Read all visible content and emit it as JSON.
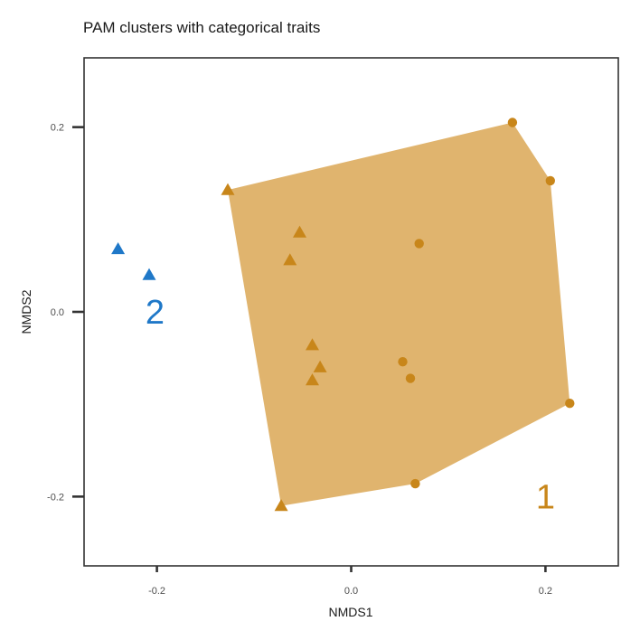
{
  "chart_data": {
    "type": "scatter",
    "title": "PAM clusters with categorical traits",
    "xlabel": "NMDS1",
    "ylabel": "NMDS2",
    "xlim": [
      -0.275,
      0.275
    ],
    "ylim": [
      -0.275,
      0.275
    ],
    "xticks": [
      -0.2,
      0.0,
      0.2
    ],
    "yticks": [
      -0.2,
      0.0,
      0.2
    ],
    "xtick_labels": [
      "-0.2",
      "0.0",
      "0.2"
    ],
    "ytick_labels": [
      "-0.2",
      "0.0",
      "0.2"
    ],
    "grid": false,
    "colors": {
      "cluster1": "#C8861A",
      "cluster1_hull": "#E0B46E",
      "cluster2": "#1F78C8"
    },
    "hull_cluster1": [
      [
        -0.127,
        0.132
      ],
      [
        0.166,
        0.205
      ],
      [
        0.205,
        0.142
      ],
      [
        0.225,
        -0.099
      ],
      [
        0.066,
        -0.186
      ],
      [
        -0.072,
        -0.21
      ]
    ],
    "points": [
      {
        "x": 0.166,
        "y": 0.205,
        "cluster": 1,
        "shape": "circle"
      },
      {
        "x": 0.205,
        "y": 0.142,
        "cluster": 1,
        "shape": "circle"
      },
      {
        "x": 0.07,
        "y": 0.074,
        "cluster": 1,
        "shape": "circle"
      },
      {
        "x": 0.053,
        "y": -0.054,
        "cluster": 1,
        "shape": "circle"
      },
      {
        "x": 0.061,
        "y": -0.072,
        "cluster": 1,
        "shape": "circle"
      },
      {
        "x": 0.225,
        "y": -0.099,
        "cluster": 1,
        "shape": "circle"
      },
      {
        "x": 0.066,
        "y": -0.186,
        "cluster": 1,
        "shape": "circle"
      },
      {
        "x": -0.127,
        "y": 0.132,
        "cluster": 1,
        "shape": "triangle"
      },
      {
        "x": -0.053,
        "y": 0.086,
        "cluster": 1,
        "shape": "triangle"
      },
      {
        "x": -0.063,
        "y": 0.056,
        "cluster": 1,
        "shape": "triangle"
      },
      {
        "x": -0.04,
        "y": -0.036,
        "cluster": 1,
        "shape": "triangle"
      },
      {
        "x": -0.032,
        "y": -0.06,
        "cluster": 1,
        "shape": "triangle"
      },
      {
        "x": -0.04,
        "y": -0.074,
        "cluster": 1,
        "shape": "triangle"
      },
      {
        "x": -0.072,
        "y": -0.21,
        "cluster": 1,
        "shape": "triangle"
      },
      {
        "x": -0.24,
        "y": 0.068,
        "cluster": 2,
        "shape": "triangle"
      },
      {
        "x": -0.208,
        "y": 0.04,
        "cluster": 2,
        "shape": "triangle"
      }
    ],
    "cluster_labels": [
      {
        "text": "2",
        "x": -0.202,
        "y": 0.0,
        "cluster": 2
      },
      {
        "text": "1",
        "x": 0.2,
        "y": -0.2,
        "cluster": 1
      }
    ]
  }
}
